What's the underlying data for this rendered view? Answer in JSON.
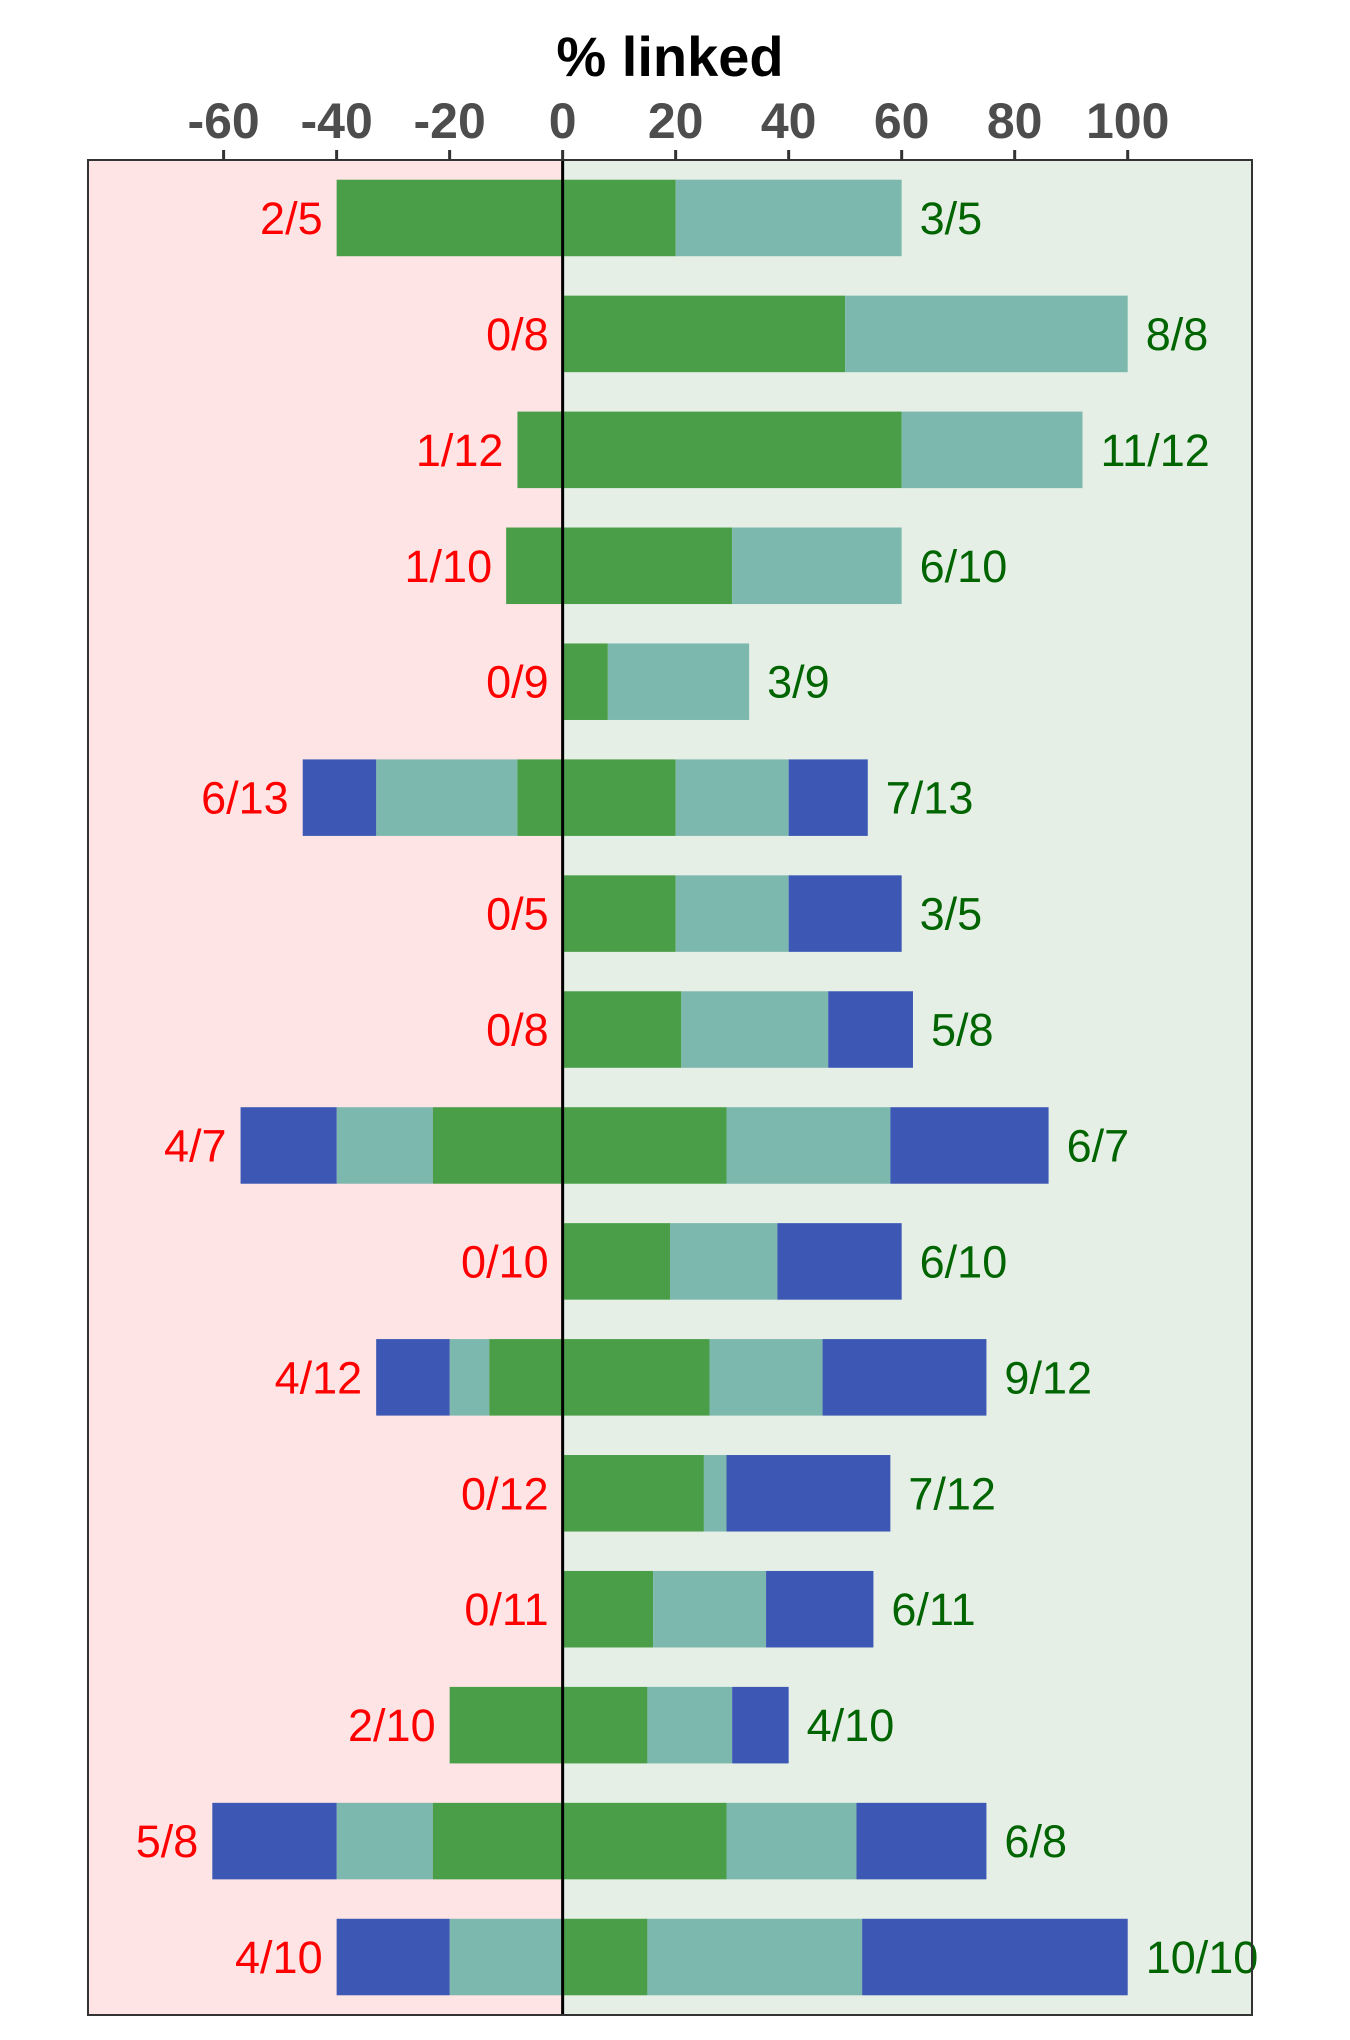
{
  "chart_data": {
    "type": "bar",
    "orientation": "horizontal",
    "stacking": "diverging",
    "xlabel": "% linked",
    "xlabel_position": "top",
    "xlim": [
      -84,
      122
    ],
    "x_ticks": [
      -60,
      -40,
      -20,
      0,
      20,
      40,
      60,
      80,
      100
    ],
    "x_tick_labels": [
      "-60",
      "-40",
      "-20",
      "0",
      "20",
      "40",
      "60",
      "80",
      "100"
    ],
    "grid": false,
    "legend": "none",
    "background": {
      "negative_side_color": "#ffe4e6",
      "positive_side_color": "#e5efe6"
    },
    "series_colors": [
      "#4a9e48",
      "#7db8ae",
      "#3c58b4"
    ],
    "rows": [
      {
        "neg_segments": [
          -40
        ],
        "pos_segments": [
          20,
          40
        ],
        "neg_label": "2/5",
        "pos_label": "3/5"
      },
      {
        "neg_segments": [],
        "pos_segments": [
          50,
          50
        ],
        "neg_label": "0/8",
        "pos_label": "8/8"
      },
      {
        "neg_segments": [
          -8
        ],
        "pos_segments": [
          60,
          32
        ],
        "neg_label": "1/12",
        "pos_label": "11/12"
      },
      {
        "neg_segments": [
          -10
        ],
        "pos_segments": [
          30,
          30
        ],
        "neg_label": "1/10",
        "pos_label": "6/10"
      },
      {
        "neg_segments": [],
        "pos_segments": [
          8,
          25
        ],
        "neg_label": "0/9",
        "pos_label": "3/9"
      },
      {
        "neg_segments": [
          -8,
          -25,
          -13
        ],
        "pos_segments": [
          20,
          20,
          14
        ],
        "neg_label": "6/13",
        "pos_label": "7/13"
      },
      {
        "neg_segments": [],
        "pos_segments": [
          20,
          20,
          20
        ],
        "neg_label": "0/5",
        "pos_label": "3/5"
      },
      {
        "neg_segments": [],
        "pos_segments": [
          21,
          26,
          15
        ],
        "neg_label": "0/8",
        "pos_label": "5/8"
      },
      {
        "neg_segments": [
          -23,
          -17,
          -17
        ],
        "pos_segments": [
          29,
          29,
          28
        ],
        "neg_label": "4/7",
        "pos_label": "6/7"
      },
      {
        "neg_segments": [],
        "pos_segments": [
          19,
          19,
          22
        ],
        "neg_label": "0/10",
        "pos_label": "6/10"
      },
      {
        "neg_segments": [
          -13,
          -7,
          -13
        ],
        "pos_segments": [
          26,
          20,
          29
        ],
        "neg_label": "4/12",
        "pos_label": "9/12"
      },
      {
        "neg_segments": [],
        "pos_segments": [
          25,
          4,
          29
        ],
        "neg_label": "0/12",
        "pos_label": "7/12"
      },
      {
        "neg_segments": [],
        "pos_segments": [
          16,
          20,
          19
        ],
        "neg_label": "0/11",
        "pos_label": "6/11"
      },
      {
        "neg_segments": [
          -20
        ],
        "pos_segments": [
          15,
          15,
          10
        ],
        "neg_label": "2/10",
        "pos_label": "4/10"
      },
      {
        "neg_segments": [
          -23,
          -17,
          -22
        ],
        "pos_segments": [
          29,
          23,
          23
        ],
        "neg_label": "5/8",
        "pos_label": "6/8"
      },
      {
        "neg_segments": [
          0,
          -20,
          -20
        ],
        "pos_segments": [
          15,
          38,
          47
        ],
        "neg_label": "4/10",
        "pos_label": "10/10"
      }
    ]
  }
}
